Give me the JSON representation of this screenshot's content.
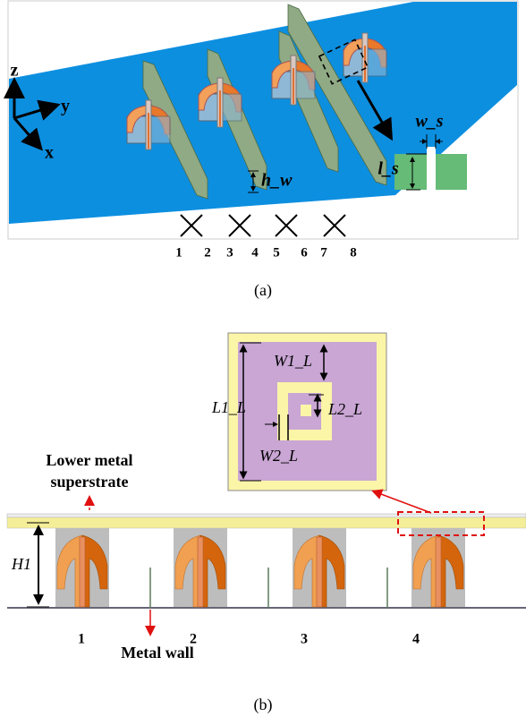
{
  "panel_a": {
    "axes": {
      "z": "z",
      "y": "y",
      "x": "x"
    },
    "dimensions": {
      "h_w": "h_w",
      "w_s": "w_s",
      "l_s": "l_s"
    },
    "port_labels": [
      "1",
      "2",
      "3",
      "4",
      "5",
      "6",
      "7",
      "8"
    ],
    "caption": "(a)"
  },
  "panel_b": {
    "inset_labels": {
      "W1_L": "W1_L",
      "L1_L": "L1_L",
      "L2_L": "L2_L",
      "W2_L": "W2_L"
    },
    "superstrate_label": [
      "Lower metal",
      "superstrate"
    ],
    "height_label": "H1",
    "wall_label": "Metal wall",
    "element_labels": [
      "1",
      "2",
      "3",
      "4"
    ],
    "caption": "(b)"
  }
}
